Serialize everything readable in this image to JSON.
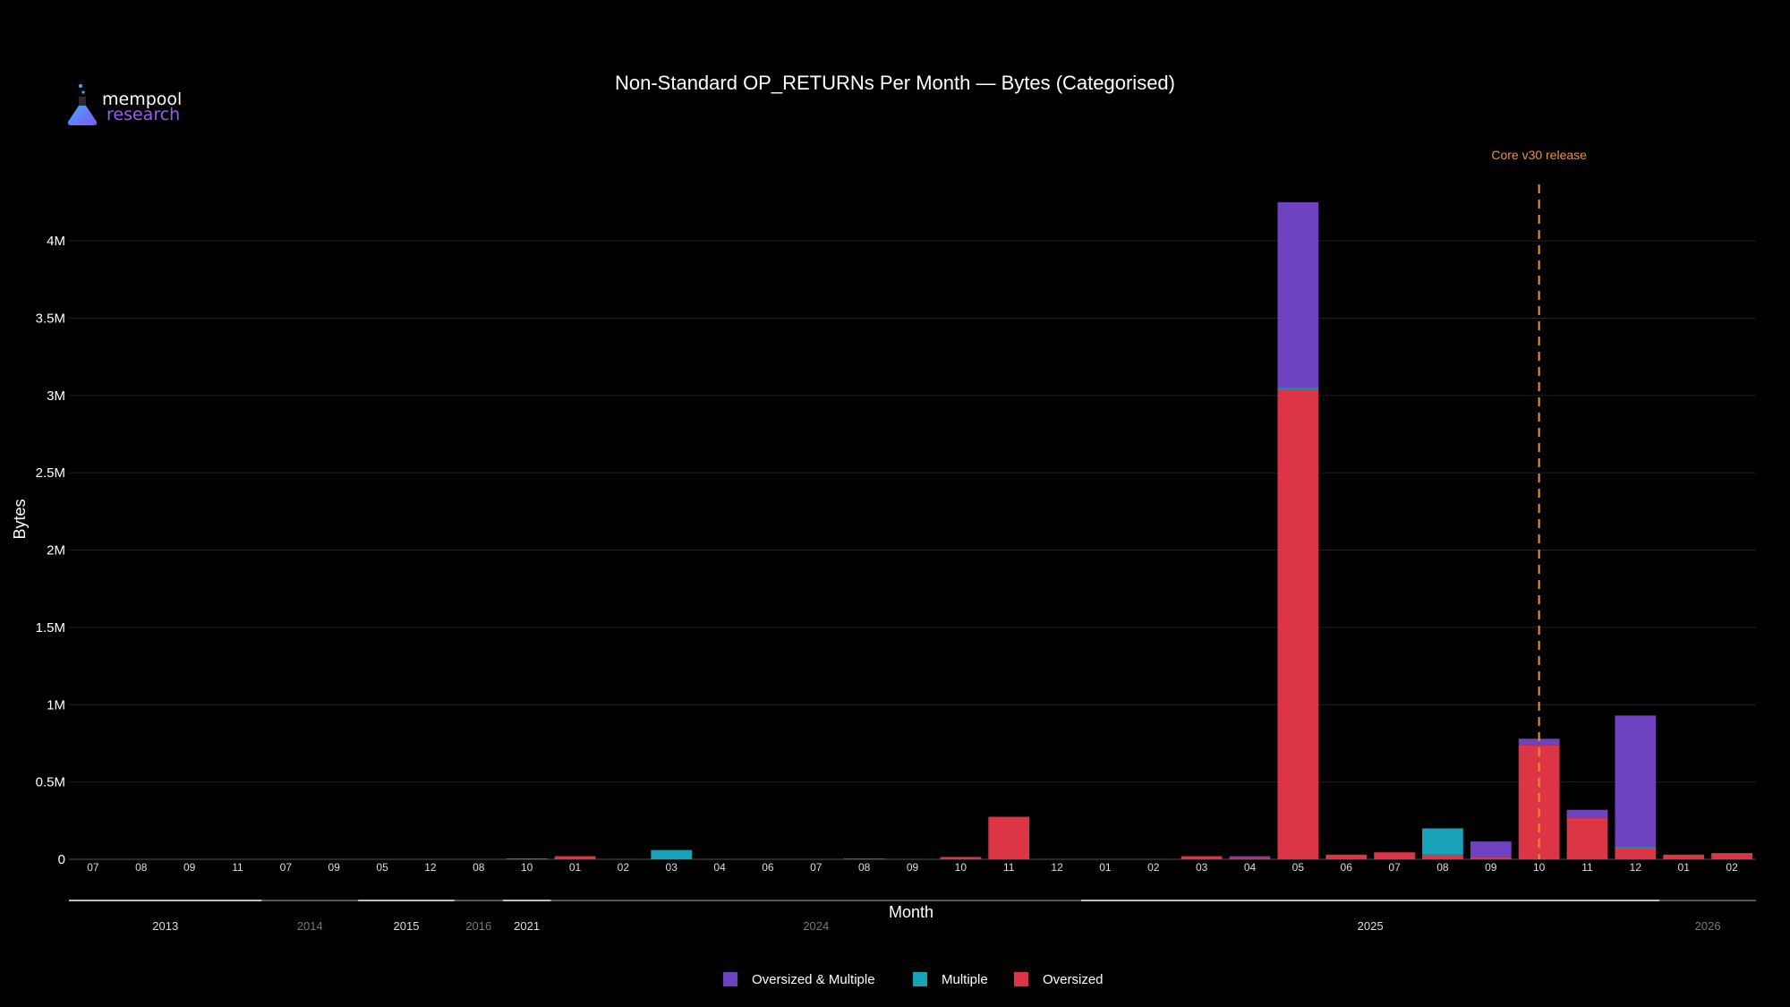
{
  "logo": {
    "brand_line1": "mempool",
    "brand_line2": "research"
  },
  "chart_data": {
    "type": "bar",
    "stacked": true,
    "title": "Non-Standard OP_RETURNs Per Month — Bytes (Categorised)",
    "xlabel": "Month",
    "ylabel": "Bytes",
    "ylim": [
      0,
      4400000
    ],
    "yticks": [
      0,
      500000,
      1000000,
      1500000,
      2000000,
      2500000,
      3000000,
      3500000,
      4000000
    ],
    "ytick_labels": [
      "0",
      "0.5M",
      "1M",
      "1.5M",
      "2M",
      "2.5M",
      "3M",
      "3.5M",
      "4M"
    ],
    "grid": true,
    "legend_position": "bottom-center",
    "categories": [
      "07",
      "08",
      "09",
      "11",
      "07",
      "09",
      "05",
      "12",
      "08",
      "10",
      "01",
      "02",
      "03",
      "04",
      "06",
      "07",
      "08",
      "09",
      "10",
      "11",
      "12",
      "01",
      "02",
      "03",
      "04",
      "05",
      "06",
      "07",
      "08",
      "09",
      "10",
      "11",
      "12",
      "01",
      "02"
    ],
    "year_groups": [
      {
        "label": "2013",
        "start": 0,
        "end": 3,
        "bright": true
      },
      {
        "label": "2014",
        "start": 4,
        "end": 5,
        "bright": false
      },
      {
        "label": "2015",
        "start": 6,
        "end": 7,
        "bright": true
      },
      {
        "label": "2016",
        "start": 8,
        "end": 8,
        "bright": false
      },
      {
        "label": "2021",
        "start": 9,
        "end": 9,
        "bright": true
      },
      {
        "label": "2024",
        "start": 10,
        "end": 20,
        "bright": false
      },
      {
        "label": "2025",
        "start": 21,
        "end": 32,
        "bright": true
      },
      {
        "label": "2026",
        "start": 33,
        "end": 34,
        "bright": false
      }
    ],
    "series": [
      {
        "name": "Oversized",
        "color": "#dc3545",
        "values": [
          0,
          0,
          0,
          0,
          0,
          0,
          0,
          0,
          0,
          0,
          20000,
          0,
          0,
          0,
          0,
          0,
          5000,
          0,
          15000,
          275000,
          0,
          0,
          0,
          20000,
          10000,
          3040000,
          30000,
          45000,
          30000,
          15000,
          740000,
          270000,
          70000,
          30000,
          40000
        ]
      },
      {
        "name": "Multiple",
        "color": "#17a2b8",
        "values": [
          0,
          0,
          0,
          0,
          0,
          0,
          0,
          0,
          0,
          5000,
          0,
          0,
          60000,
          0,
          0,
          0,
          0,
          0,
          0,
          0,
          0,
          0,
          0,
          0,
          0,
          10000,
          0,
          0,
          170000,
          0,
          0,
          0,
          10000,
          0,
          0
        ]
      },
      {
        "name": "Oversized & Multiple",
        "color": "#6f42c1",
        "values": [
          0,
          0,
          0,
          0,
          0,
          0,
          0,
          0,
          0,
          0,
          0,
          0,
          0,
          0,
          0,
          0,
          0,
          0,
          0,
          0,
          0,
          0,
          0,
          0,
          10000,
          1200000,
          0,
          0,
          0,
          100000,
          40000,
          50000,
          850000,
          0,
          0
        ]
      }
    ],
    "legend_order": [
      "Oversized & Multiple",
      "Multiple",
      "Oversized"
    ],
    "annotations": [
      {
        "text": "Core v30 release",
        "x_index": 30,
        "color": "#f5922a",
        "style": "dashed"
      }
    ]
  }
}
